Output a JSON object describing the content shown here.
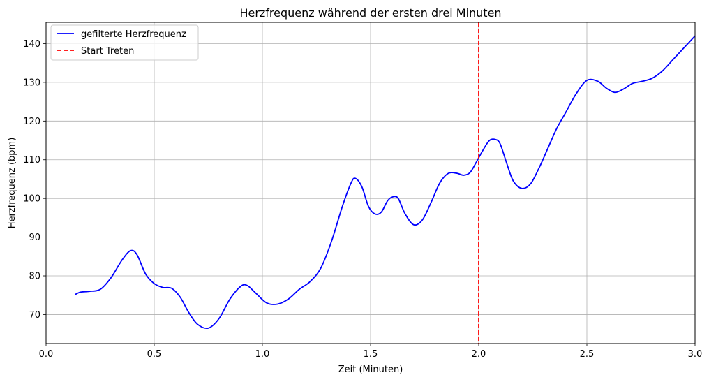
{
  "chart_data": {
    "type": "line",
    "title": "Herzfrequenz während der ersten drei Minuten",
    "xlabel": "Zeit (Minuten)",
    "ylabel": "Herzfrequenz (bpm)",
    "xlim": [
      0.0,
      3.0
    ],
    "ylim": [
      62.5,
      145.5
    ],
    "xticks": [
      0.0,
      0.5,
      1.0,
      1.5,
      2.0,
      2.5,
      3.0
    ],
    "xtick_labels": [
      "0.0",
      "0.5",
      "1.0",
      "1.5",
      "2.0",
      "2.5",
      "3.0"
    ],
    "yticks": [
      70,
      80,
      90,
      100,
      110,
      120,
      130,
      140
    ],
    "ytick_labels": [
      "70",
      "80",
      "90",
      "100",
      "110",
      "120",
      "130",
      "140"
    ],
    "grid": true,
    "legend_position": "top-left",
    "series": [
      {
        "name": "gefilterte Herzfrequenz",
        "color": "#0000ff",
        "style": "solid",
        "x": [
          0.135,
          0.16,
          0.2,
          0.25,
          0.3,
          0.35,
          0.39,
          0.42,
          0.46,
          0.5,
          0.54,
          0.58,
          0.62,
          0.66,
          0.7,
          0.75,
          0.8,
          0.85,
          0.9,
          0.93,
          0.97,
          1.02,
          1.07,
          1.12,
          1.17,
          1.22,
          1.27,
          1.32,
          1.37,
          1.41,
          1.43,
          1.46,
          1.49,
          1.52,
          1.55,
          1.58,
          1.61,
          1.63,
          1.66,
          1.7,
          1.74,
          1.78,
          1.82,
          1.86,
          1.9,
          1.93,
          1.96,
          1.99,
          2.02,
          2.05,
          2.08,
          2.1,
          2.13,
          2.16,
          2.2,
          2.24,
          2.28,
          2.32,
          2.36,
          2.4,
          2.45,
          2.5,
          2.55,
          2.59,
          2.63,
          2.67,
          2.71,
          2.75,
          2.8,
          2.85,
          2.9,
          2.95,
          3.0
        ],
        "y": [
          75.2,
          75.8,
          76.0,
          76.5,
          79.5,
          84.0,
          86.5,
          85.5,
          80.5,
          78.0,
          77.0,
          76.8,
          74.5,
          70.5,
          67.5,
          66.5,
          69.0,
          74.0,
          77.3,
          77.5,
          75.5,
          73.0,
          72.7,
          74.0,
          76.5,
          78.5,
          82.0,
          89.0,
          98.0,
          104.0,
          105.2,
          103.0,
          98.0,
          96.0,
          96.5,
          99.5,
          100.5,
          99.8,
          96.0,
          93.2,
          94.5,
          99.0,
          104.0,
          106.5,
          106.5,
          106.0,
          106.7,
          109.5,
          112.5,
          115.0,
          115.2,
          114.0,
          109.0,
          104.5,
          102.6,
          103.8,
          108.0,
          113.0,
          118.0,
          122.0,
          127.0,
          130.5,
          130.3,
          128.5,
          127.4,
          128.3,
          129.7,
          130.2,
          131.0,
          133.0,
          136.0,
          139.0,
          142.0
        ]
      },
      {
        "name": "Start Treten",
        "color": "#ff0000",
        "style": "dashed",
        "type": "vline",
        "x": 2.0
      }
    ]
  }
}
